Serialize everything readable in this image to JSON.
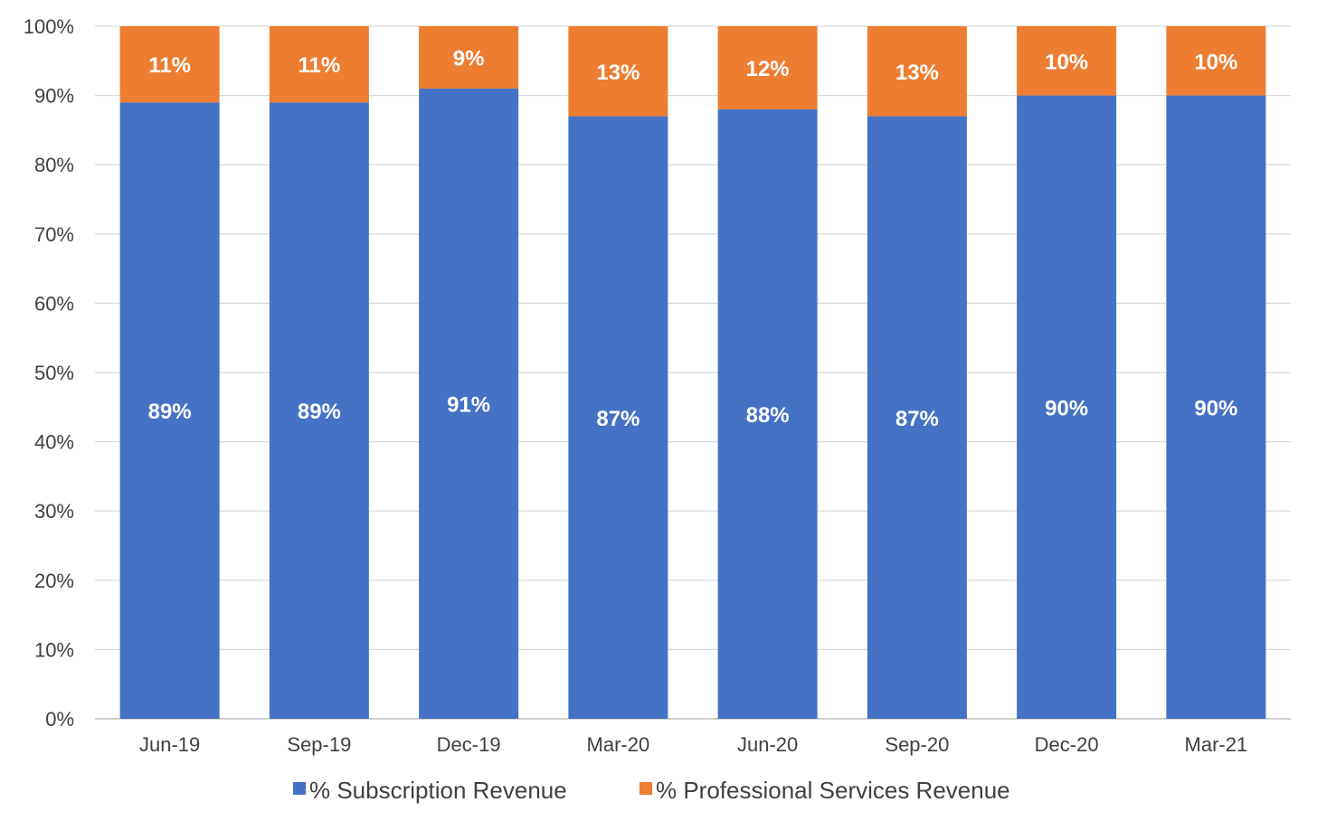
{
  "chart_data": {
    "type": "bar",
    "stacked": true,
    "categories": [
      "Jun-19",
      "Sep-19",
      "Dec-19",
      "Mar-20",
      "Jun-20",
      "Sep-20",
      "Dec-20",
      "Mar-21"
    ],
    "series": [
      {
        "name": "% Subscription Revenue",
        "color": "#4472C4",
        "values": [
          89,
          89,
          91,
          87,
          88,
          87,
          90,
          90
        ],
        "labels": [
          "89%",
          "89%",
          "91%",
          "87%",
          "88%",
          "87%",
          "90%",
          "90%"
        ]
      },
      {
        "name": "% Professional Services Revenue",
        "color": "#ED7D31",
        "values": [
          11,
          11,
          9,
          13,
          12,
          13,
          10,
          10
        ],
        "labels": [
          "11%",
          "11%",
          "9%",
          "13%",
          "12%",
          "13%",
          "10%",
          "10%"
        ]
      }
    ],
    "ylim": [
      0,
      100
    ],
    "yticks": [
      "0%",
      "10%",
      "20%",
      "30%",
      "40%",
      "50%",
      "60%",
      "70%",
      "80%",
      "90%",
      "100%"
    ],
    "grid": true,
    "legend_position": "bottom",
    "colors": {
      "grid": "#D9D9D9",
      "axis": "#BFBFBF",
      "label_text": "#FFFFFF",
      "tick_text": "#404040"
    }
  }
}
